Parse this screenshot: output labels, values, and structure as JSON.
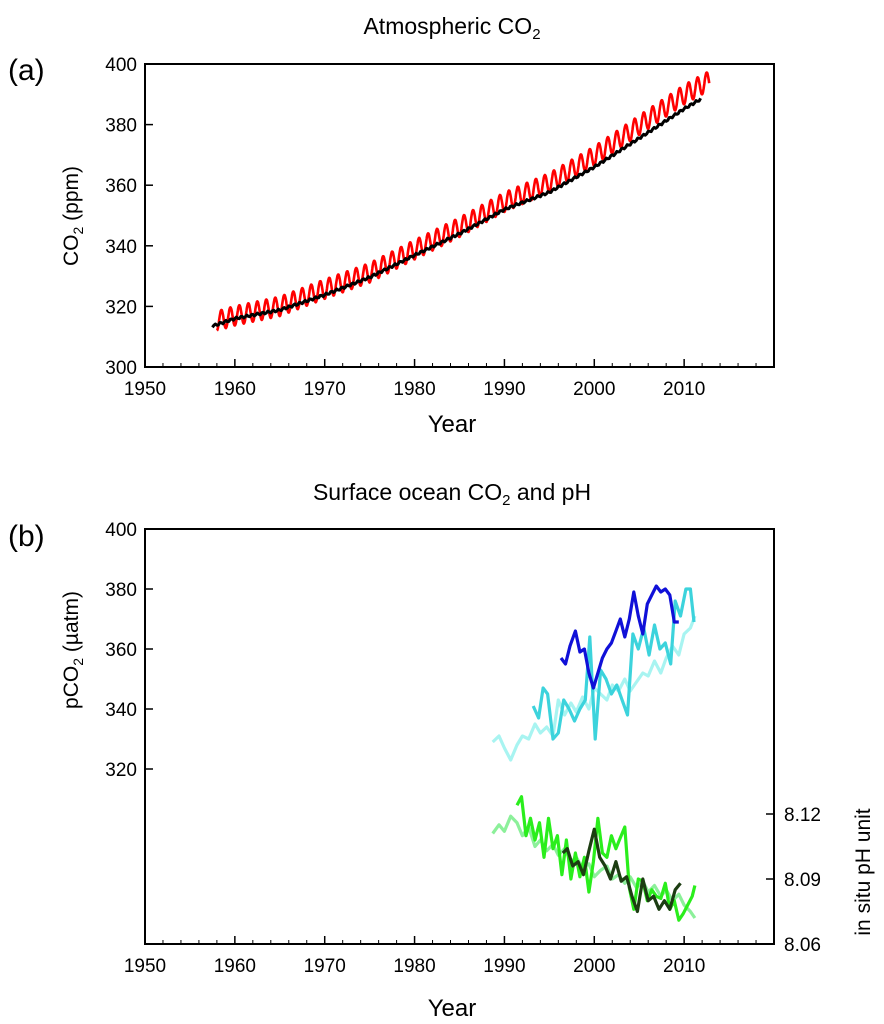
{
  "chart_data": [
    {
      "type": "line",
      "panel_label": "(a)",
      "title": "Atmospheric CO",
      "title_sub": "2",
      "xlabel": "Year",
      "ylabel": "CO",
      "ylabel_sub": "2",
      "ylabel_tail": " (ppm)",
      "xlim": [
        1950,
        2020
      ],
      "ylim": [
        300,
        400
      ],
      "x_ticks": [
        1950,
        1960,
        1970,
        1980,
        1990,
        2000,
        2010
      ],
      "y_ticks": [
        300,
        320,
        340,
        360,
        380,
        400
      ],
      "series": [
        {
          "color": "#ff0000",
          "kind": "seasonal",
          "x": [
            1958,
            1960,
            1965,
            1970,
            1975,
            1980,
            1985,
            1990,
            1995,
            2000,
            2005,
            2010,
            2012.8
          ],
          "y": [
            315.2,
            316.9,
            320.0,
            325.7,
            331.1,
            338.7,
            346.1,
            354.4,
            360.8,
            369.6,
            379.8,
            389.9,
            394.5
          ],
          "amplitude": 3.2
        },
        {
          "color": "#000000",
          "kind": "smooth",
          "x": [
            1957.5,
            1960,
            1965,
            1970,
            1975,
            1980,
            1985,
            1990,
            1995,
            2000,
            2005,
            2010,
            2012
          ],
          "y": [
            313.5,
            316.0,
            318.8,
            323.8,
            329.6,
            336.9,
            344.0,
            352.0,
            357.7,
            366.0,
            375.5,
            385.2,
            388.7
          ]
        }
      ]
    },
    {
      "type": "line",
      "panel_label": "(b)",
      "title": "Surface ocean CO",
      "title_sub": "2",
      "title_tail": " and pH",
      "xlabel": "Year",
      "ylabel": "pCO",
      "ylabel_sub": "2",
      "ylabel_tail": " (µatm)",
      "y2label": "in situ pH unit",
      "xlim": [
        1950,
        2020
      ],
      "ylim": [
        300,
        400
      ],
      "x_ticks": [
        1950,
        1960,
        1970,
        1980,
        1990,
        2000,
        2010
      ],
      "y_ticks": [
        320,
        340,
        360,
        380,
        400
      ],
      "y2lim": [
        8.06,
        8.15
      ],
      "y2_ticks": [
        "8.06",
        "8.09",
        "8.12"
      ],
      "pco2_series": [
        {
          "color": "#a8f4f1",
          "x": [
            1988.7,
            1989.4,
            1990,
            1990.7,
            1991.4,
            1992,
            1992.7,
            1993.4,
            1994,
            1994.7,
            1995.4,
            1996,
            1996.7,
            1997.4,
            1998,
            1998.7,
            1999.4,
            2000,
            2000.7,
            2001.4,
            2002,
            2002.7,
            2003.4,
            2004,
            2004.7,
            2005.4,
            2006,
            2006.7,
            2007.4,
            2008,
            2008.7,
            2009.4,
            2010,
            2010.7,
            2011.2
          ],
          "y": [
            329,
            331,
            327,
            323,
            328,
            331,
            330,
            335,
            332,
            334,
            331,
            343,
            338,
            342,
            339,
            344,
            340,
            347,
            345,
            343,
            348,
            346,
            350,
            346,
            349,
            352,
            351,
            356,
            352,
            357,
            361,
            358,
            365,
            367,
            371
          ]
        },
        {
          "color": "#3cd3dc",
          "x": [
            1993.2,
            1993.8,
            1994.3,
            1994.8,
            1995.4,
            1996,
            1996.6,
            1997.2,
            1997.8,
            1998.4,
            1999,
            1999.5,
            2000.1,
            2000.7,
            2001.3,
            2001.9,
            2002.5,
            2003.1,
            2003.7,
            2004.3,
            2004.9,
            2005.5,
            2006.1,
            2006.7,
            2007.3,
            2007.9,
            2008.5,
            2009,
            2009.6,
            2010.2,
            2010.7,
            2011.1
          ],
          "y": [
            341,
            337,
            347,
            345,
            330,
            332,
            343,
            340,
            336,
            340,
            343,
            364,
            330,
            353,
            350,
            345,
            348,
            343,
            338,
            365,
            360,
            367,
            358,
            368,
            360,
            362,
            355,
            376,
            371,
            380,
            380,
            369
          ]
        },
        {
          "color": "#1010d8",
          "x": [
            1996.3,
            1996.8,
            1997.3,
            1997.9,
            1998.4,
            1998.9,
            1999.4,
            1999.9,
            2000.4,
            2000.9,
            2001.4,
            2001.9,
            2002.4,
            2002.9,
            2003.4,
            2003.9,
            2004.4,
            2004.9,
            2005.4,
            2005.9,
            2006.4,
            2006.9,
            2007.4,
            2007.9,
            2008.4,
            2008.9,
            2009.4
          ],
          "y": [
            357,
            355,
            361,
            366,
            359,
            360,
            352,
            347,
            352,
            357,
            360,
            362,
            366,
            370,
            364,
            370,
            379,
            371,
            365,
            375,
            378,
            381,
            379,
            380,
            378,
            369,
            369
          ]
        }
      ],
      "ph_series": [
        {
          "color": "#8cf09a",
          "x": [
            1988.7,
            1989.4,
            1990,
            1990.7,
            1991.4,
            1992,
            1992.7,
            1993.4,
            1994,
            1994.7,
            1995.4,
            1996,
            1996.7,
            1997.4,
            1998,
            1998.7,
            1999.4,
            2000,
            2000.7,
            2001.4,
            2002,
            2002.7,
            2003.4,
            2004,
            2004.7,
            2005.4,
            2006,
            2006.7,
            2007.4,
            2008,
            2008.7,
            2009.4,
            2010,
            2010.7,
            2011.2
          ],
          "y": [
            8.111,
            8.115,
            8.112,
            8.119,
            8.116,
            8.11,
            8.114,
            8.105,
            8.108,
            8.103,
            8.106,
            8.101,
            8.104,
            8.098,
            8.1,
            8.095,
            8.097,
            8.091,
            8.094,
            8.096,
            8.09,
            8.092,
            8.088,
            8.091,
            8.086,
            8.089,
            8.084,
            8.087,
            8.082,
            8.085,
            8.08,
            8.083,
            8.078,
            8.075,
            8.072
          ]
        },
        {
          "color": "#2aee1c",
          "x": [
            1991.4,
            1991.9,
            1992.4,
            1992.9,
            1993.4,
            1993.9,
            1994.4,
            1994.9,
            1995.4,
            1995.9,
            1996.4,
            1996.9,
            1997.4,
            1997.9,
            1998.4,
            1998.9,
            1999.4,
            1999.9,
            2000.4,
            2000.9,
            2001.4,
            2001.9,
            2002.4,
            2002.9,
            2003.4,
            2003.9,
            2004.4,
            2004.9,
            2005.4,
            2005.9,
            2006.4,
            2006.9,
            2007.4,
            2007.9,
            2008.4,
            2008.9,
            2009.4,
            2009.9,
            2010.4,
            2010.9,
            2011.2
          ],
          "y": [
            8.124,
            8.128,
            8.11,
            8.118,
            8.108,
            8.116,
            8.1,
            8.118,
            8.104,
            8.11,
            8.092,
            8.108,
            8.09,
            8.102,
            8.091,
            8.1,
            8.084,
            8.098,
            8.118,
            8.102,
            8.1,
            8.11,
            8.104,
            8.109,
            8.114,
            8.086,
            8.076,
            8.09,
            8.089,
            8.08,
            8.085,
            8.082,
            8.081,
            8.088,
            8.076,
            8.08,
            8.071,
            8.074,
            8.078,
            8.082,
            8.087
          ]
        },
        {
          "color": "#1c3d12",
          "x": [
            1996.5,
            1997,
            1997.6,
            1998.2,
            1998.8,
            1999.4,
            2000,
            2000.6,
            2001.2,
            2001.8,
            2002.4,
            2003,
            2003.6,
            2004.2,
            2004.8,
            2005.4,
            2006,
            2006.6,
            2007.2,
            2007.8,
            2008.4,
            2009,
            2009.6
          ],
          "y": [
            8.102,
            8.104,
            8.096,
            8.098,
            8.092,
            8.103,
            8.113,
            8.1,
            8.096,
            8.09,
            8.098,
            8.089,
            8.091,
            8.082,
            8.075,
            8.09,
            8.08,
            8.082,
            8.076,
            8.08,
            8.076,
            8.085,
            8.088
          ]
        }
      ]
    }
  ]
}
